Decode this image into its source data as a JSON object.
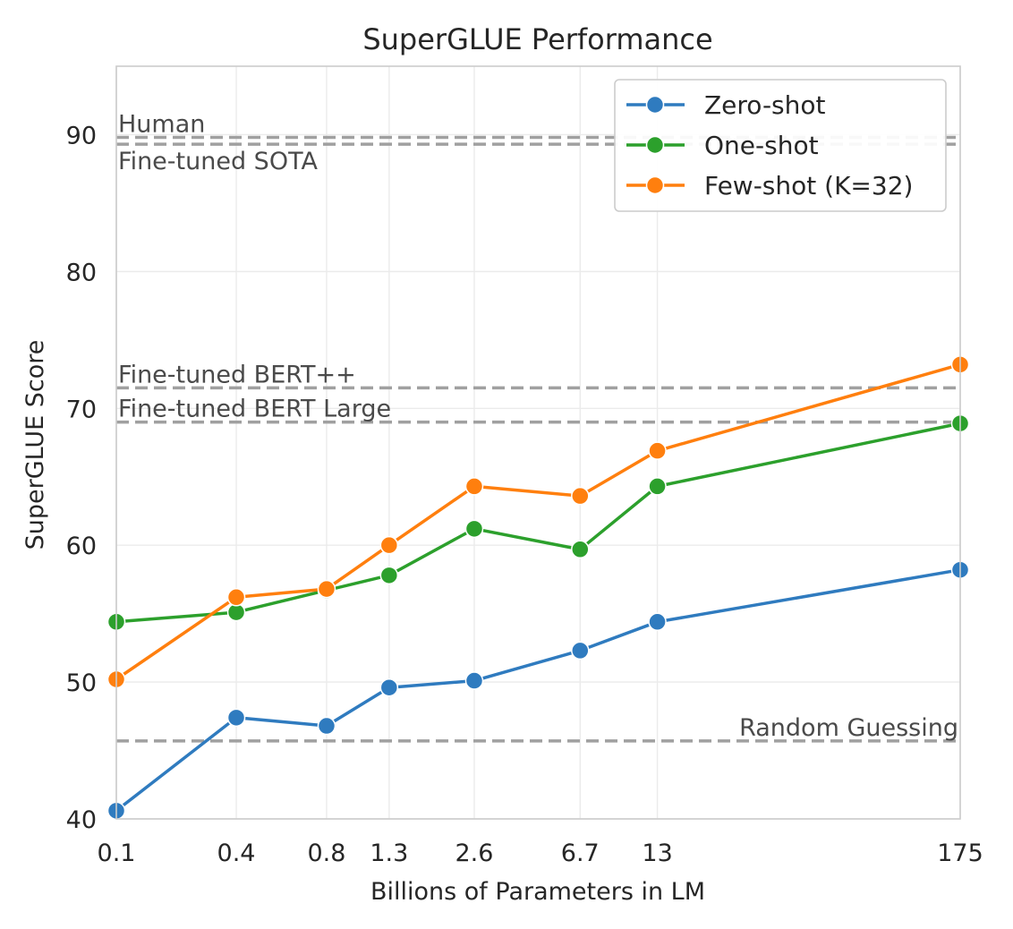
{
  "chart_data": {
    "type": "line",
    "title": "SuperGLUE Performance",
    "xlabel": "Billions of Parameters in LM",
    "ylabel": "SuperGLUE Score",
    "x_scale": "log",
    "x": [
      "0.1",
      "0.4",
      "0.8",
      "1.3",
      "2.6",
      "6.7",
      "13",
      "175"
    ],
    "x_values": [
      0.125,
      0.35,
      0.76,
      1.3,
      2.7,
      6.7,
      13,
      175
    ],
    "xlim": [
      0.125,
      175
    ],
    "ylim": [
      40,
      95
    ],
    "yticks": [
      40,
      50,
      60,
      70,
      80,
      90
    ],
    "grid": true,
    "legend_position": "top-right",
    "series": [
      {
        "name": "Zero-shot",
        "color": "#2f7bbf",
        "values": [
          40.6,
          47.4,
          46.8,
          49.6,
          50.1,
          52.3,
          54.4,
          58.2
        ]
      },
      {
        "name": "One-shot",
        "color": "#2ca02c",
        "values": [
          54.4,
          55.1,
          56.7,
          57.8,
          61.2,
          59.7,
          64.3,
          68.9
        ]
      },
      {
        "name": "Few-shot (K=32)",
        "color": "#ff7f0e",
        "values": [
          50.2,
          56.2,
          56.8,
          60.0,
          64.3,
          63.6,
          66.9,
          73.2
        ]
      }
    ],
    "reference_lines": [
      {
        "label": "Human",
        "value": 89.8,
        "label_side": "left",
        "label_position": "above"
      },
      {
        "label": "Fine-tuned SOTA",
        "value": 89.3,
        "label_side": "left",
        "label_position": "below"
      },
      {
        "label": "Fine-tuned BERT++",
        "value": 71.5,
        "label_side": "left",
        "label_position": "above"
      },
      {
        "label": "Fine-tuned BERT Large",
        "value": 69.0,
        "label_side": "left",
        "label_position": "above"
      },
      {
        "label": "Random Guessing",
        "value": 45.7,
        "label_side": "right",
        "label_position": "above"
      }
    ],
    "reference_line_color": "#a0a0a0"
  }
}
